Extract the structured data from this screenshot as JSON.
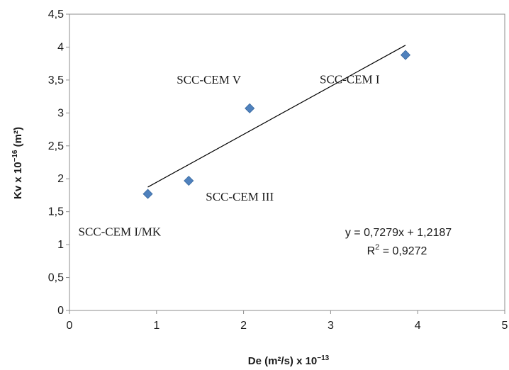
{
  "chart_data": {
    "type": "scatter",
    "title": "",
    "xlabel": "De (m²/s) x 10",
    "xlabel_exp": "−13",
    "ylabel": "Kv x 10",
    "ylabel_exp": "−16",
    "ylabel_unit": " (m²)",
    "xlim": [
      0,
      5
    ],
    "ylim": [
      0,
      4.5
    ],
    "x_ticks": [
      0,
      1,
      2,
      3,
      4,
      5
    ],
    "x_tick_labels": [
      "0",
      "1",
      "2",
      "3",
      "4",
      "5"
    ],
    "y_ticks": [
      0,
      0.5,
      1,
      1.5,
      2,
      2.5,
      3,
      3.5,
      4,
      4.5
    ],
    "y_tick_labels": [
      "0",
      "0,5",
      "1",
      "1,5",
      "2",
      "2,5",
      "3",
      "3,5",
      "4",
      "4,5"
    ],
    "grid": false,
    "legend": "none",
    "marker_color": "#4f81bd",
    "line_color": "#000000",
    "points": [
      {
        "x": 0.9,
        "y": 1.77,
        "label": "SCC-CEM I/MK"
      },
      {
        "x": 1.37,
        "y": 1.97,
        "label": "SCC-CEM III"
      },
      {
        "x": 2.07,
        "y": 3.07,
        "label": "SCC-CEM V"
      },
      {
        "x": 3.86,
        "y": 3.88,
        "label": "SCC-CEM I"
      }
    ],
    "trendline": {
      "slope": 0.7279,
      "intercept": 1.2187,
      "equation": "y = 0,7279x + 1,2187",
      "r2_label": "R",
      "r2_exp": "2",
      "r2_value": " = 0,9272"
    }
  }
}
